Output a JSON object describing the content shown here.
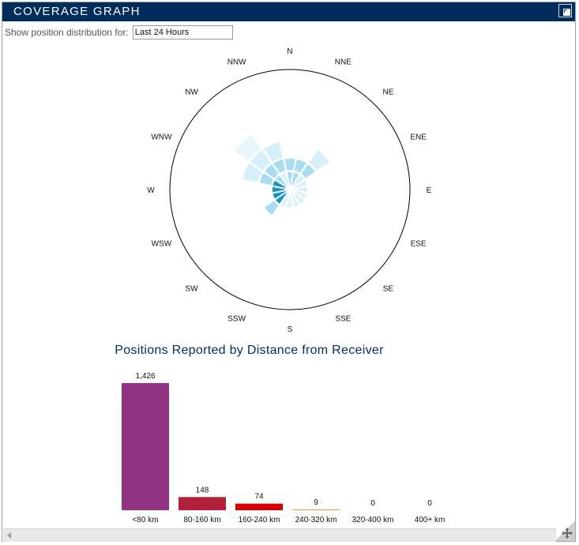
{
  "panel": {
    "title": "COVERAGE GRAPH"
  },
  "filter": {
    "label": "Show position distribution for:",
    "selected": "Last 24 Hours"
  },
  "radar": {
    "directions": [
      "N",
      "NNE",
      "NE",
      "ENE",
      "E",
      "ESE",
      "SE",
      "SSE",
      "S",
      "SSW",
      "SW",
      "WSW",
      "W",
      "WNW",
      "NW",
      "NNW"
    ],
    "colors": {
      "ring0": "#1a96c6",
      "ring1": "#a6ddf1",
      "ring2": "#d6eff9",
      "ring3": "#e8f6fc"
    },
    "comment_levels": "per direction, number of distance bands shaded (0 = innermost only)"
  },
  "chart_data": {
    "type": "bar",
    "title": "Positions Reported by Distance from Receiver",
    "categories": [
      "<80 km",
      "80-160 km",
      "160-240 km",
      "240-320 km",
      "320-400 km",
      "400+ km"
    ],
    "values": [
      1426,
      148,
      74,
      9,
      0,
      0
    ],
    "value_labels": [
      "1,426",
      "148",
      "74",
      "9",
      "0",
      "0"
    ],
    "colors": [
      "#933182",
      "#b2203a",
      "#d40000",
      "#e3a81d",
      "#cccccc",
      "#cccccc"
    ]
  }
}
